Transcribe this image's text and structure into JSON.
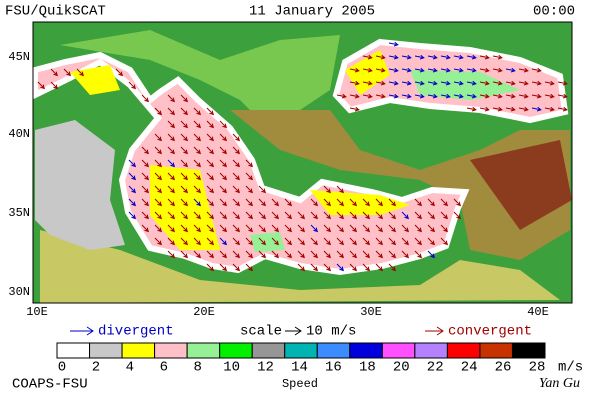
{
  "header": {
    "left": "FSU/QuikSCAT",
    "center": "11 January 2005",
    "right": "00:00"
  },
  "map": {
    "lat_labels": [
      "45N",
      "40N",
      "35N",
      "30N"
    ],
    "lon_labels": [
      "10E",
      "20E",
      "30E",
      "40E"
    ]
  },
  "legend": {
    "divergent": "divergent",
    "scale": "scale",
    "scale_value": "10 m/s",
    "convergent": "convergent"
  },
  "colorbar": {
    "ticks": [
      0,
      2,
      4,
      6,
      8,
      10,
      12,
      14,
      16,
      18,
      20,
      22,
      24,
      26,
      28
    ],
    "unit": "m/s",
    "label": "Speed",
    "colors": [
      "#ffffff",
      "#c8c8c8",
      "#ffff00",
      "#ffc0c8",
      "#96f096",
      "#00f000",
      "#969696",
      "#00b4b4",
      "#3c8cff",
      "#0000dc",
      "#ff50ff",
      "#b482ff",
      "#ff0000",
      "#c83200",
      "#000000"
    ]
  },
  "footer": {
    "left": "COAPS-FSU",
    "right": "Yan Gu"
  }
}
